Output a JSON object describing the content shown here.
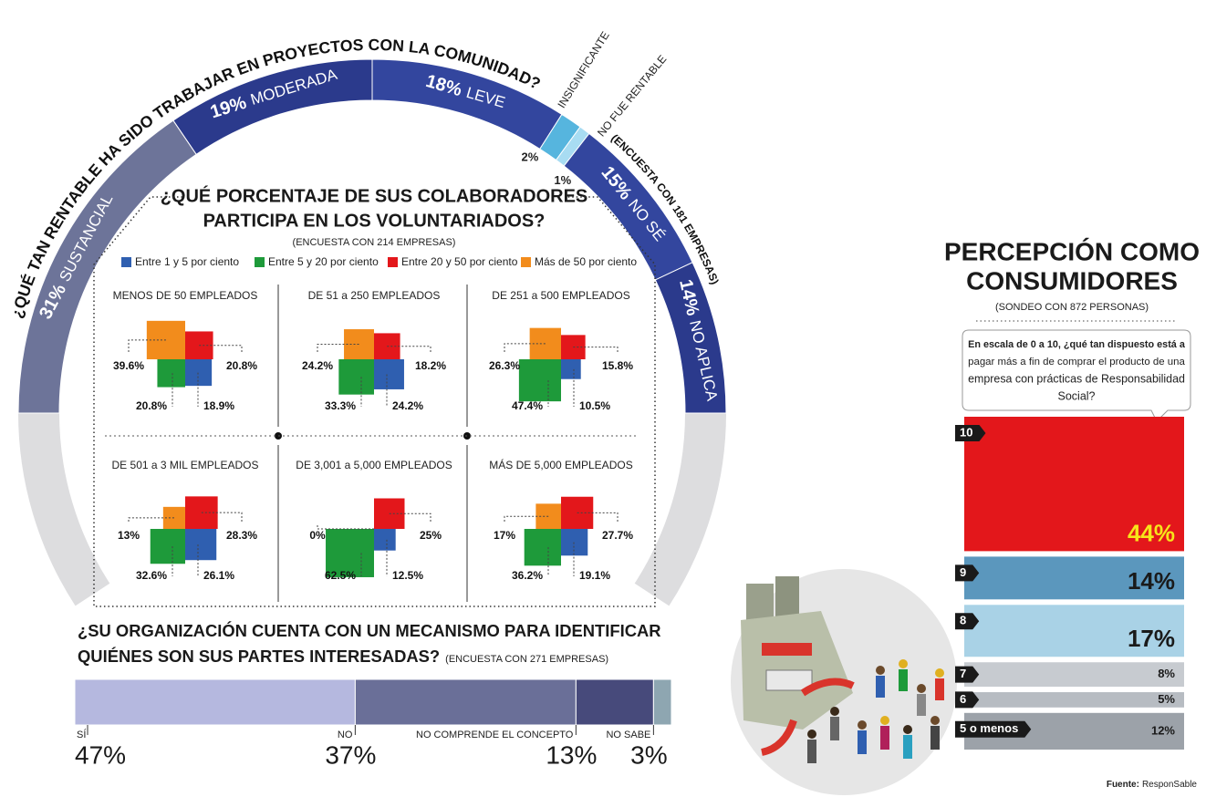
{
  "chart_data": [
    {
      "type": "arc",
      "title": "¿QUÉ TAN RENTABLE HA SIDO TRABAJAR EN PROYECTOS CON LA COMUNIDAD?",
      "subtitle": "(ENCUESTA CON 181 EMPRESAS)",
      "categories": [
        "SUSTANCIAL",
        "MODERADA",
        "LEVE",
        "INSIGNIFICANTE",
        "NO FUE RENTABLE",
        "NO SÉ",
        "NO APLICA"
      ],
      "values": [
        31,
        19,
        18,
        2,
        1,
        15,
        14
      ],
      "value_labels": [
        "31%",
        "19%",
        "18%",
        "2%",
        "1%",
        "15%",
        "14%"
      ],
      "colors": [
        "#6d7499",
        "#2b3a8c",
        "#33469e",
        "#56b5de",
        "#a8dcf2",
        "#33469e",
        "#2b3a8c"
      ]
    },
    {
      "type": "squares",
      "title": [
        "¿QUÉ PORCENTAJE DE SUS COLABORADORES",
        "PARTICIPA EN LOS VOLUNTARIADOS?"
      ],
      "subtitle": "(ENCUESTA CON 214 EMPRESAS)",
      "categories": [
        "MENOS DE 50 EMPLEADOS",
        "DE 51 a 250 EMPLEADOS",
        "DE 251 a 500 EMPLEADOS",
        "DE 501 a 3 MIL EMPLEADOS",
        "DE 3,001 a 5,000 EMPLEADOS",
        "MÁS DE 5,000 EMPLEADOS"
      ],
      "series": [
        {
          "name": "Entre 1 y 5 por ciento",
          "color": "#2f5fb0",
          "values": [
            18.9,
            24.2,
            10.5,
            26.1,
            12.5,
            19.1
          ],
          "value_labels": [
            "18.9%",
            "24.2%",
            "10.5%",
            "26.1%",
            "12.5%",
            "19.1%"
          ]
        },
        {
          "name": "Entre 5 y 20 por ciento",
          "color": "#1e9a3a",
          "values": [
            20.8,
            33.3,
            47.4,
            32.6,
            62.5,
            36.2
          ],
          "value_labels": [
            "20.8%",
            "33.3%",
            "47.4%",
            "32.6%",
            "62.5%",
            "36.2%"
          ]
        },
        {
          "name": "Entre 20 y 50 por ciento",
          "color": "#e3171b",
          "values": [
            20.8,
            18.2,
            15.8,
            28.3,
            25,
            27.7
          ],
          "value_labels": [
            "20.8%",
            "18.2%",
            "15.8%",
            "28.3%",
            "25%",
            "27.7%"
          ]
        },
        {
          "name": "Más de 50 por ciento",
          "color": "#f28c1c",
          "values": [
            39.6,
            24.2,
            26.3,
            13,
            0,
            17
          ],
          "value_labels": [
            "39.6%",
            "24.2%",
            "26.3%",
            "13%",
            "0%",
            "17%"
          ]
        }
      ]
    },
    {
      "type": "stacked-hbar",
      "title": [
        "¿SU ORGANIZACIÓN CUENTA CON UN MECANISMO PARA IDENTIFICAR",
        "QUIÉNES SON SUS PARTES INTERESADAS?"
      ],
      "subtitle": "(ENCUESTA CON 271 EMPRESAS)",
      "categories": [
        "SÍ",
        "NO",
        "NO COMPRENDE EL CONCEPTO",
        "NO SABE"
      ],
      "values": [
        47,
        37,
        13,
        3
      ],
      "value_labels": [
        "47%",
        "37%",
        "13%",
        "3%"
      ],
      "colors": [
        "#b5b8df",
        "#6a6f98",
        "#474a7b",
        "#8ea6b1"
      ]
    },
    {
      "type": "stacked-vbar",
      "title": [
        "PERCEPCIÓN COMO",
        "CONSUMIDORES"
      ],
      "subtitle": "(SONDEO CON 872 PERSONAS)",
      "question": [
        "En escala de 0 a 10, ¿qué tan dispuesto está a",
        "pagar más a fin de comprar el producto de una",
        "empresa con prácticas de Responsabilidad",
        "Social?"
      ],
      "categories": [
        "10",
        "9",
        "8",
        "7",
        "6",
        "5 o menos"
      ],
      "values": [
        44,
        14,
        17,
        8,
        5,
        12
      ],
      "value_labels": [
        "44%",
        "14%",
        "17%",
        "8%",
        "5%",
        "12%"
      ],
      "colors": [
        "#e3171b",
        "#5b97bd",
        "#a9d2e6",
        "#c7cbd0",
        "#b7bcc2",
        "#9ca2a9"
      ],
      "value_label_colors": [
        "#f7e51a",
        "#1a1a1a",
        "#1a1a1a",
        "#1a1a1a",
        "#1a1a1a",
        "#1a1a1a"
      ]
    }
  ],
  "source": {
    "label": "Fuente:",
    "text": "ResponSable"
  }
}
